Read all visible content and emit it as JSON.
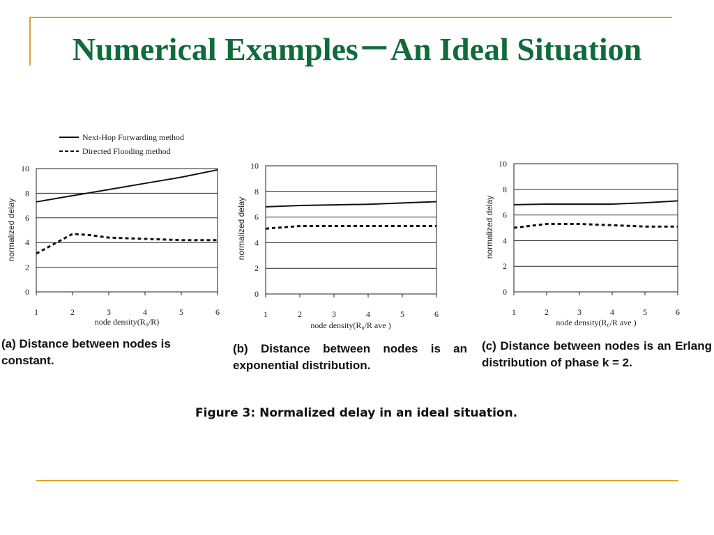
{
  "slide": {
    "title": "Numerical Examples－An Ideal Situation",
    "title_color": "#0f6b3a",
    "rule_color": "#e0a42a"
  },
  "legend": {
    "solid_label": "Next-Hop Forwarding method",
    "dashed_label": "Directed Flooding method"
  },
  "figure_caption": "Figure 3: Normalized delay in an ideal situation.",
  "chart_data": [
    {
      "type": "line",
      "caption": "(a) Distance between nodes is constant.",
      "xlabel": "node density(R₀/R)",
      "ylabel": "normalized delay",
      "xlim": [
        1,
        6
      ],
      "ylim": [
        0,
        10
      ],
      "xticks": [
        "1",
        "2",
        "3",
        "4",
        "5",
        "6"
      ],
      "yticks": [
        "0",
        "2",
        "4",
        "6",
        "8",
        "10"
      ],
      "grid": true,
      "legend": "top-left",
      "series": [
        {
          "name": "Next-Hop Forwarding method",
          "style": "solid",
          "x": [
            1,
            2,
            3,
            4,
            5,
            6
          ],
          "values": [
            7.3,
            7.8,
            8.3,
            8.8,
            9.3,
            9.9
          ]
        },
        {
          "name": "Directed Flooding method",
          "style": "dashed",
          "x": [
            1,
            2,
            2.5,
            3,
            4,
            5,
            6
          ],
          "values": [
            3.1,
            4.7,
            4.6,
            4.4,
            4.3,
            4.2,
            4.2
          ]
        }
      ]
    },
    {
      "type": "line",
      "caption": "(b) Distance between nodes is an exponential distribution.",
      "xlabel": "node density(R₀/R ave )",
      "ylabel": "normalized delay",
      "xlim": [
        1,
        6
      ],
      "ylim": [
        0,
        10
      ],
      "xticks": [
        "1",
        "2",
        "3",
        "4",
        "5",
        "6"
      ],
      "yticks": [
        "0",
        "2",
        "4",
        "6",
        "8",
        "10"
      ],
      "grid": true,
      "series": [
        {
          "name": "Next-Hop Forwarding method",
          "style": "solid",
          "x": [
            1,
            2,
            3,
            4,
            5,
            6
          ],
          "values": [
            6.8,
            6.9,
            6.95,
            7.0,
            7.1,
            7.2
          ]
        },
        {
          "name": "Directed Flooding method",
          "style": "dashed",
          "x": [
            1,
            2,
            3,
            4,
            5,
            6
          ],
          "values": [
            5.1,
            5.3,
            5.3,
            5.3,
            5.3,
            5.3
          ]
        }
      ]
    },
    {
      "type": "line",
      "caption": "(c) Distance between nodes is an Erlang distribution of phase k = 2.",
      "xlabel": "node density(R₀/R ave )",
      "ylabel": "normalized delay",
      "xlim": [
        1,
        6
      ],
      "ylim": [
        0,
        10
      ],
      "xticks": [
        "1",
        "2",
        "3",
        "4",
        "5",
        "6"
      ],
      "yticks": [
        "0",
        "2",
        "4",
        "6",
        "8",
        "10"
      ],
      "grid": true,
      "series": [
        {
          "name": "Next-Hop Forwarding method",
          "style": "solid",
          "x": [
            1,
            2,
            3,
            4,
            5,
            6
          ],
          "values": [
            6.8,
            6.85,
            6.85,
            6.85,
            6.95,
            7.1
          ]
        },
        {
          "name": "Directed Flooding method",
          "style": "dashed",
          "x": [
            1,
            2,
            3,
            4,
            5,
            6
          ],
          "values": [
            5.0,
            5.3,
            5.3,
            5.2,
            5.1,
            5.1
          ]
        }
      ]
    }
  ]
}
